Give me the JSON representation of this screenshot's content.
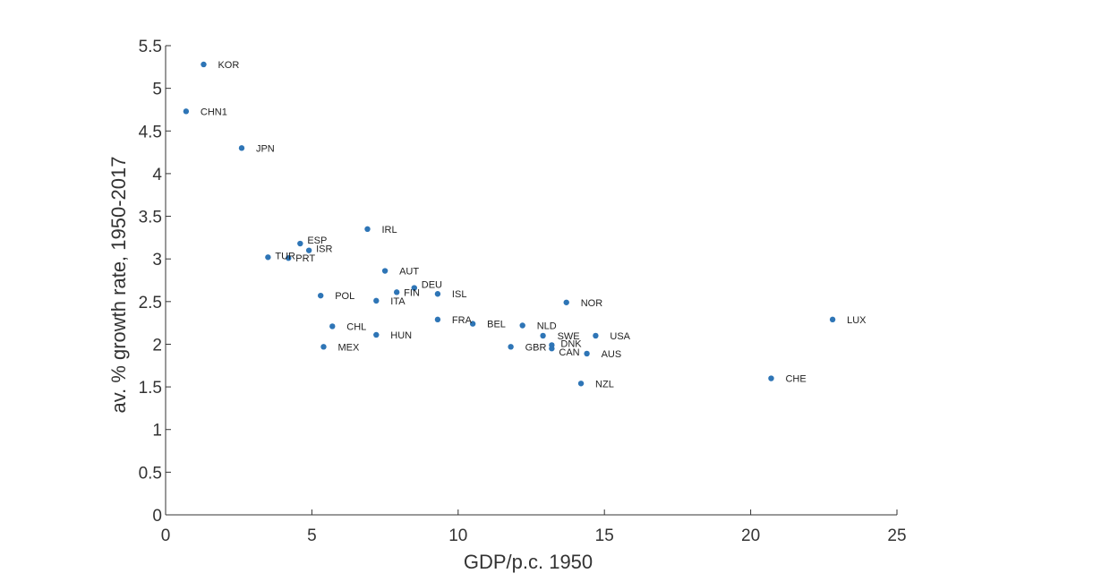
{
  "chart_data": {
    "type": "scatter",
    "xlabel": "GDP/p.c. 1950",
    "ylabel": "av. % growth rate, 1950-2017",
    "xlim": [
      0,
      25
    ],
    "ylim": [
      0,
      5.5
    ],
    "xticks": [
      0,
      5,
      10,
      15,
      20,
      25
    ],
    "yticks": [
      0,
      0.5,
      1,
      1.5,
      2,
      2.5,
      3,
      3.5,
      4,
      4.5,
      5,
      5.5
    ],
    "xtick_labels": [
      "0",
      "5",
      "10",
      "15",
      "20",
      "25"
    ],
    "ytick_labels": [
      "0",
      "0.5",
      "1",
      "1.5",
      "2",
      "2.5",
      "3",
      "3.5",
      "4",
      "4.5",
      "5",
      "5.5"
    ],
    "grid": false,
    "marker_color": "#2e75b6",
    "points": [
      {
        "label": "KOR",
        "x": 1.3,
        "y": 5.28
      },
      {
        "label": "CHN1",
        "x": 0.7,
        "y": 4.73
      },
      {
        "label": "JPN",
        "x": 2.6,
        "y": 4.3
      },
      {
        "label": "IRL",
        "x": 6.9,
        "y": 3.35
      },
      {
        "label": "ESP",
        "x": 4.6,
        "y": 3.18
      },
      {
        "label": "ISR",
        "x": 4.9,
        "y": 3.1
      },
      {
        "label": "TUR",
        "x": 3.5,
        "y": 3.02
      },
      {
        "label": "PRT",
        "x": 4.2,
        "y": 3.01
      },
      {
        "label": "AUT",
        "x": 7.5,
        "y": 2.86
      },
      {
        "label": "DEU",
        "x": 8.5,
        "y": 2.66
      },
      {
        "label": "FIN",
        "x": 7.9,
        "y": 2.61
      },
      {
        "label": "ISL",
        "x": 9.3,
        "y": 2.59
      },
      {
        "label": "POL",
        "x": 5.3,
        "y": 2.57
      },
      {
        "label": "ITA",
        "x": 7.2,
        "y": 2.51
      },
      {
        "label": "NOR",
        "x": 13.7,
        "y": 2.49
      },
      {
        "label": "FRA",
        "x": 9.3,
        "y": 2.29
      },
      {
        "label": "LUX",
        "x": 22.8,
        "y": 2.29
      },
      {
        "label": "BEL",
        "x": 10.5,
        "y": 2.24
      },
      {
        "label": "NLD",
        "x": 12.2,
        "y": 2.22
      },
      {
        "label": "CHL",
        "x": 5.7,
        "y": 2.21
      },
      {
        "label": "HUN",
        "x": 7.2,
        "y": 2.11
      },
      {
        "label": "SWE",
        "x": 12.9,
        "y": 2.1
      },
      {
        "label": "USA",
        "x": 14.7,
        "y": 2.1
      },
      {
        "label": "MEX",
        "x": 5.4,
        "y": 1.97
      },
      {
        "label": "GBR",
        "x": 11.8,
        "y": 1.97
      },
      {
        "label": "DNK",
        "x": 13.2,
        "y": 1.99
      },
      {
        "label": "CAN",
        "x": 13.2,
        "y": 1.95
      },
      {
        "label": "AUS",
        "x": 14.4,
        "y": 1.89
      },
      {
        "label": "CHE",
        "x": 20.7,
        "y": 1.6
      },
      {
        "label": "NZL",
        "x": 14.2,
        "y": 1.54
      }
    ]
  }
}
